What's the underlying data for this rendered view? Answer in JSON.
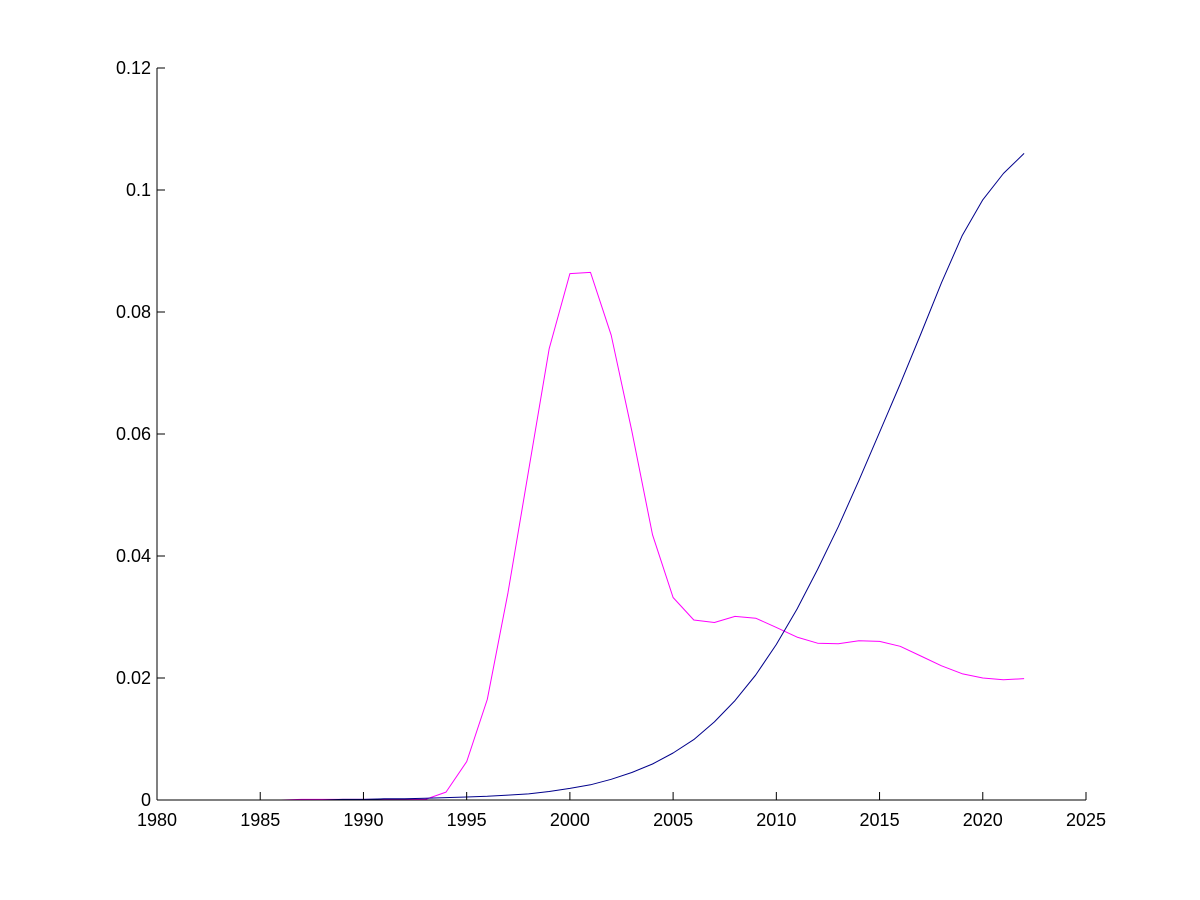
{
  "chart_data": {
    "type": "line",
    "title": "",
    "xlabel": "",
    "ylabel": "",
    "xlim": [
      1980,
      2025
    ],
    "ylim": [
      0,
      0.12
    ],
    "xticks": [
      "1980",
      "1985",
      "1990",
      "1995",
      "2000",
      "2005",
      "2010",
      "2015",
      "2020",
      "2025"
    ],
    "yticks": [
      "0",
      "0.02",
      "0.04",
      "0.06",
      "0.08",
      "0.1",
      "0.12"
    ],
    "grid": false,
    "legend": "none",
    "x": [
      1980,
      1981,
      1982,
      1983,
      1984,
      1985,
      1986,
      1987,
      1988,
      1989,
      1990,
      1991,
      1992,
      1993,
      1994,
      1995,
      1996,
      1997,
      1998,
      1999,
      2000,
      2001,
      2002,
      2003,
      2004,
      2005,
      2006,
      2007,
      2008,
      2009,
      2010,
      2011,
      2012,
      2013,
      2014,
      2015,
      2016,
      2017,
      2018,
      2019,
      2020,
      2021,
      2022
    ],
    "series": [
      {
        "color": "#ff00ff",
        "values": [
          0,
          0,
          0,
          0,
          0,
          0,
          0,
          0.0001,
          0.0001,
          0.0001,
          0.0001,
          0.0001,
          0.0001,
          0.0001,
          0.0013,
          0.0063,
          0.0165,
          0.034,
          0.054,
          0.074,
          0.0863,
          0.0865,
          0.0762,
          0.0605,
          0.0435,
          0.0332,
          0.0295,
          0.0291,
          0.0301,
          0.0298,
          0.0283,
          0.0267,
          0.0257,
          0.0256,
          0.0261,
          0.026,
          0.0252,
          0.0236,
          0.022,
          0.0207,
          0.02,
          0.0197,
          0.0199
        ]
      },
      {
        "color": "#00008b",
        "values": [
          0,
          0,
          0,
          0,
          0,
          0,
          0,
          0,
          0,
          0.0001,
          0.0001,
          0.0002,
          0.0002,
          0.0003,
          0.0004,
          0.0005,
          0.0006,
          0.0008,
          0.001,
          0.0014,
          0.0019,
          0.0025,
          0.0034,
          0.0045,
          0.0059,
          0.0077,
          0.0099,
          0.0128,
          0.0163,
          0.0205,
          0.0255,
          0.0313,
          0.0378,
          0.0448,
          0.0524,
          0.0603,
          0.0682,
          0.0764,
          0.0848,
          0.0925,
          0.0984,
          0.1027,
          0.106
        ]
      }
    ]
  }
}
